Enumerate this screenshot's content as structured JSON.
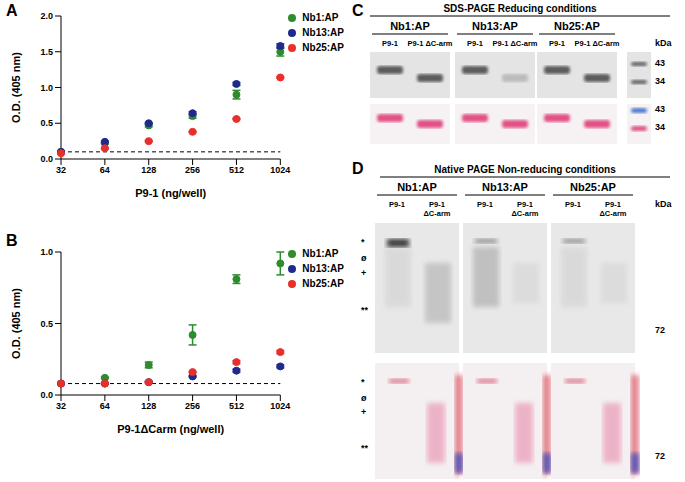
{
  "chart_data": [
    {
      "type": "scatter",
      "x_label": "P9-1 (ng/well)",
      "y_label": "O.D. (405 nm)",
      "categories": [
        "32",
        "64",
        "128",
        "256",
        "512",
        "1024"
      ],
      "ylim": [
        0,
        2
      ],
      "yticks": [
        {
          "value": 0,
          "label": "0.0"
        },
        {
          "value": 0.5,
          "label": "0.5"
        },
        {
          "value": 1,
          "label": "1.0"
        },
        {
          "value": 1.5,
          "label": "1.5"
        },
        {
          "value": 2,
          "label": "2.0"
        }
      ],
      "cutoff": 0.1,
      "legend": "right",
      "series": [
        {
          "name": "Nb1:AP",
          "color": "#2e8b2e",
          "values": [
            0.1,
            0.22,
            0.47,
            0.6,
            0.9,
            1.5
          ],
          "errors": [
            0.01,
            0.01,
            0.02,
            0.03,
            0.06,
            0.06
          ]
        },
        {
          "name": "Nb13:AP",
          "color": "#1f2a8f",
          "values": [
            0.1,
            0.24,
            0.5,
            0.64,
            1.05,
            1.58
          ],
          "errors": [
            0.01,
            0.01,
            0.01,
            0.02,
            0.02,
            0.03
          ]
        },
        {
          "name": "Nb25:AP",
          "color": "#e8302a",
          "values": [
            0.08,
            0.15,
            0.25,
            0.38,
            0.56,
            1.14
          ],
          "errors": [
            0.01,
            0.01,
            0.01,
            0.01,
            0.01,
            0.01
          ]
        }
      ]
    },
    {
      "type": "scatter",
      "x_label": "P9-1ΔCarm (ng/well)",
      "y_label": "O.D. (405 nm)",
      "categories": [
        "32",
        "64",
        "128",
        "256",
        "512",
        "1024"
      ],
      "ylim": [
        0,
        1
      ],
      "yticks": [
        {
          "value": 0,
          "label": "0.0"
        },
        {
          "value": 0.5,
          "label": "0.5"
        },
        {
          "value": 1,
          "label": "1.0"
        }
      ],
      "cutoff": 0.08,
      "legend": "right",
      "series": [
        {
          "name": "Nb1:AP",
          "color": "#2e8b2e",
          "values": [
            0.08,
            0.12,
            0.21,
            0.42,
            0.81,
            0.92
          ],
          "errors": [
            0.005,
            0.005,
            0.02,
            0.07,
            0.03,
            0.08
          ]
        },
        {
          "name": "Nb13:AP",
          "color": "#1f2a8f",
          "values": [
            0.08,
            0.08,
            0.09,
            0.13,
            0.17,
            0.2
          ],
          "errors": [
            0.005,
            0.005,
            0.005,
            0.005,
            0.01,
            0.01
          ]
        },
        {
          "name": "Nb25:AP",
          "color": "#e8302a",
          "values": [
            0.08,
            0.08,
            0.09,
            0.16,
            0.23,
            0.3
          ],
          "errors": [
            0.005,
            0.005,
            0.005,
            0.005,
            0.01,
            0.01
          ]
        }
      ]
    }
  ],
  "panel_labels": [
    "A",
    "B",
    "C",
    "D"
  ],
  "blot_C": {
    "title": "SDS-PAGE Reducing conditions",
    "groups": [
      "Nb1:AP",
      "Nb13:AP",
      "Nb25:AP"
    ],
    "lanes": [
      "P9-1",
      "P9-1 ΔC-arm"
    ],
    "unit": "kDa",
    "markers": [
      43,
      34
    ]
  },
  "blot_D": {
    "title": "Native PAGE Non-reducing conditions",
    "groups": [
      "Nb1:AP",
      "Nb13:AP",
      "Nb25:AP"
    ],
    "lanes": [
      "P9-1",
      "P9-1 ΔC-arm"
    ],
    "unit": "kDa",
    "symbols": [
      "*",
      "ø",
      "+",
      "**"
    ],
    "markers": [
      72
    ]
  }
}
